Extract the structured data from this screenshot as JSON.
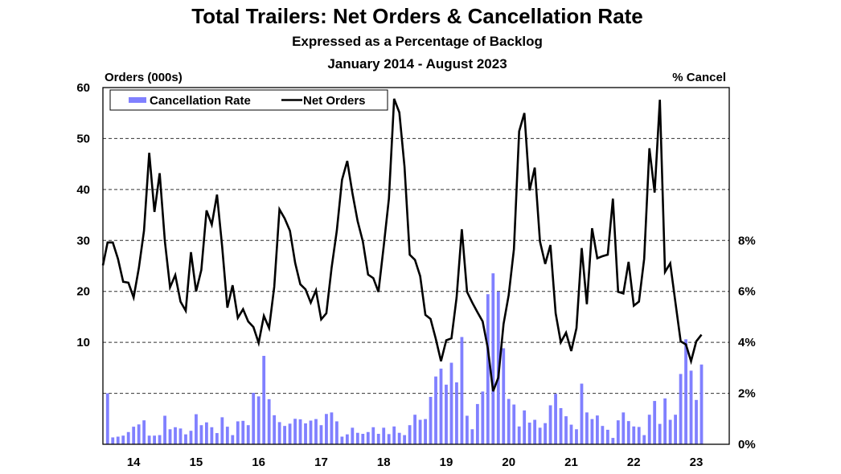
{
  "chart_data": {
    "type": "bar+line",
    "title": "Total Trailers: Net Orders & Cancellation Rate",
    "subtitle": "Expressed as a Percentage of Backlog",
    "period": "January 2014 - August 2023",
    "ylabel_left": "Orders (000s)",
    "ylabel_right": "% Cancel",
    "ylim_left": [
      0,
      60
    ],
    "ylim_right": [
      0,
      14
    ],
    "left_ticks": [
      "60",
      "50",
      "40",
      "30",
      "20",
      "10"
    ],
    "right_ticks": [
      "8%",
      "6%",
      "4%",
      "2%",
      "0%"
    ],
    "x_ticks": [
      "14",
      "15",
      "16",
      "17",
      "18",
      "19",
      "20",
      "21",
      "22",
      "23"
    ],
    "grid": "horizontal dashed",
    "legend": {
      "position": "top-left",
      "items": [
        "Cancellation Rate",
        "Net Orders"
      ]
    },
    "colors": {
      "bars": "#8080ff",
      "line": "#000000"
    },
    "start": "2014-01",
    "series": [
      {
        "name": "Net Orders",
        "axis": "left",
        "values": [
          25.1,
          29.6,
          29.6,
          26.4,
          21.9,
          21.7,
          18.8,
          24.6,
          31.9,
          47.2,
          35.6,
          43.2,
          29.8,
          20.8,
          23.2,
          18.0,
          16.2,
          27.7,
          20.0,
          24.2,
          35.9,
          33.1,
          39.0,
          28.8,
          16.8,
          21.2,
          14.8,
          16.5,
          14.1,
          13.0,
          9.9,
          15.2,
          12.8,
          20.9,
          36.1,
          34.3,
          31.9,
          25.6,
          21.4,
          20.4,
          17.8,
          20.2,
          14.5,
          15.7,
          24.6,
          31.9,
          41.9,
          45.6,
          39.3,
          33.8,
          29.8,
          23.3,
          22.6,
          19.9,
          28.8,
          38.2,
          57.8,
          55.1,
          44.5,
          27.2,
          26.2,
          23.0,
          15.4,
          14.6,
          10.7,
          6.3,
          10.4,
          10.8,
          18.8,
          32.2,
          19.9,
          17.8,
          15.9,
          14.1,
          8.8,
          0.4,
          3.1,
          13.6,
          19.3,
          28.3,
          51.4,
          55.0,
          39.8,
          44.3,
          29.8,
          25.4,
          29.1,
          15.7,
          10.0,
          11.9,
          8.3,
          12.8,
          28.5,
          17.5,
          32.4,
          26.5,
          26.9,
          27.2,
          38.2,
          19.9,
          19.6,
          25.8,
          17.2,
          18.0,
          26.4,
          48.1,
          39.4,
          57.6,
          23.8,
          25.5,
          17.8,
          10.2,
          9.6,
          6.3,
          10.2,
          11.5
        ]
      },
      {
        "name": "Cancellation Rate",
        "axis": "right",
        "unit": "%",
        "values": [
          0.64,
          2.0,
          0.27,
          0.3,
          0.34,
          0.48,
          0.69,
          0.78,
          0.94,
          0.34,
          0.34,
          0.36,
          1.12,
          0.59,
          0.67,
          0.62,
          0.39,
          0.53,
          1.18,
          0.75,
          0.86,
          0.67,
          0.44,
          1.06,
          0.69,
          0.36,
          0.9,
          0.92,
          0.75,
          2.02,
          1.88,
          3.47,
          1.77,
          1.14,
          0.87,
          0.72,
          0.81,
          1.0,
          0.98,
          0.82,
          0.93,
          0.99,
          0.75,
          1.19,
          1.25,
          0.9,
          0.3,
          0.39,
          0.65,
          0.45,
          0.41,
          0.48,
          0.67,
          0.41,
          0.65,
          0.4,
          0.7,
          0.45,
          0.36,
          0.75,
          1.16,
          0.96,
          0.99,
          1.86,
          2.66,
          2.97,
          2.34,
          3.2,
          2.43,
          4.21,
          1.12,
          0.59,
          1.58,
          2.07,
          5.89,
          6.71,
          5.99,
          3.77,
          1.78,
          1.56,
          0.7,
          1.33,
          0.85,
          0.96,
          0.65,
          0.83,
          1.53,
          1.98,
          1.42,
          1.1,
          0.77,
          0.59,
          2.38,
          1.25,
          0.99,
          1.13,
          0.72,
          0.57,
          0.25,
          0.94,
          1.25,
          0.91,
          0.7,
          0.68,
          0.36,
          1.16,
          1.7,
          0.8,
          1.8,
          0.96,
          1.16,
          2.76,
          4.12,
          2.89,
          1.74,
          3.13
        ]
      }
    ]
  }
}
